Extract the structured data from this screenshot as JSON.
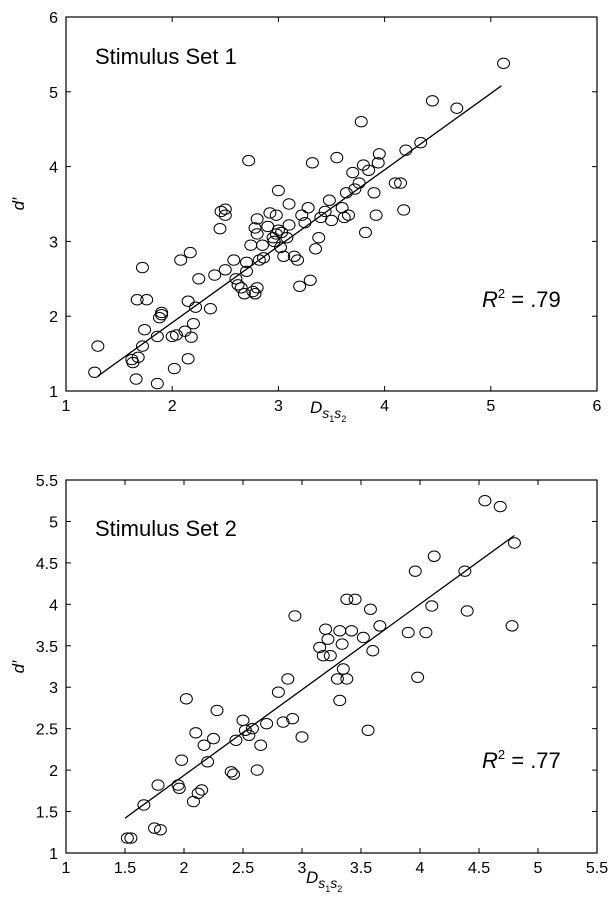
{
  "chart_data": [
    {
      "type": "scatter",
      "annotation": "Stimulus Set 1",
      "ylabel": "d′",
      "xlabel_main": "D",
      "xlabel_sub1": "s",
      "xlabel_sub1_idx": "1",
      "xlabel_sub2": "s",
      "xlabel_sub2_idx": "2",
      "r2_label": "R",
      "r2_sup": "2",
      "r2_value": " = .79",
      "xlim": [
        1,
        6
      ],
      "ylim": [
        1,
        6
      ],
      "xticks": [
        1,
        2,
        3,
        4,
        5,
        6
      ],
      "yticks": [
        1,
        2,
        3,
        4,
        5,
        6
      ],
      "grid": false,
      "fit_line": {
        "x": [
          1.3,
          5.1
        ],
        "y": [
          1.2,
          5.08
        ]
      },
      "points": [
        [
          1.27,
          1.25
        ],
        [
          1.3,
          1.6
        ],
        [
          1.62,
          1.42
        ],
        [
          1.63,
          1.38
        ],
        [
          1.66,
          1.16
        ],
        [
          1.67,
          2.22
        ],
        [
          1.72,
          2.65
        ],
        [
          1.76,
          2.22
        ],
        [
          1.68,
          1.45
        ],
        [
          1.72,
          1.6
        ],
        [
          1.74,
          1.82
        ],
        [
          1.86,
          1.1
        ],
        [
          1.86,
          1.73
        ],
        [
          1.88,
          1.98
        ],
        [
          1.9,
          2.05
        ],
        [
          1.9,
          2.02
        ],
        [
          2.0,
          1.73
        ],
        [
          2.02,
          1.3
        ],
        [
          2.04,
          1.75
        ],
        [
          2.08,
          2.75
        ],
        [
          2.12,
          1.8
        ],
        [
          2.15,
          1.43
        ],
        [
          2.15,
          2.2
        ],
        [
          2.17,
          2.85
        ],
        [
          2.18,
          1.72
        ],
        [
          2.2,
          1.9
        ],
        [
          2.22,
          2.12
        ],
        [
          2.25,
          2.5
        ],
        [
          2.36,
          2.1
        ],
        [
          2.4,
          2.55
        ],
        [
          2.45,
          3.17
        ],
        [
          2.46,
          3.4
        ],
        [
          2.5,
          3.43
        ],
        [
          2.5,
          2.62
        ],
        [
          2.5,
          3.35
        ],
        [
          2.58,
          2.75
        ],
        [
          2.6,
          2.5
        ],
        [
          2.62,
          2.42
        ],
        [
          2.65,
          2.38
        ],
        [
          2.68,
          2.3
        ],
        [
          2.7,
          2.6
        ],
        [
          2.7,
          2.72
        ],
        [
          2.72,
          4.08
        ],
        [
          2.74,
          2.95
        ],
        [
          2.76,
          2.33
        ],
        [
          2.78,
          2.3
        ],
        [
          2.78,
          3.18
        ],
        [
          2.8,
          2.38
        ],
        [
          2.8,
          3.1
        ],
        [
          2.8,
          3.3
        ],
        [
          2.82,
          2.75
        ],
        [
          2.85,
          2.95
        ],
        [
          2.86,
          2.78
        ],
        [
          2.9,
          3.2
        ],
        [
          2.92,
          3.38
        ],
        [
          2.95,
          3.05
        ],
        [
          2.96,
          3.0
        ],
        [
          2.98,
          3.1
        ],
        [
          2.98,
          3.35
        ],
        [
          3.0,
          3.68
        ],
        [
          3.0,
          3.15
        ],
        [
          3.02,
          2.92
        ],
        [
          3.03,
          3.12
        ],
        [
          3.05,
          2.8
        ],
        [
          3.08,
          3.05
        ],
        [
          3.1,
          3.22
        ],
        [
          3.1,
          3.5
        ],
        [
          3.15,
          2.8
        ],
        [
          3.18,
          2.75
        ],
        [
          3.2,
          2.4
        ],
        [
          3.22,
          3.35
        ],
        [
          3.25,
          3.25
        ],
        [
          3.28,
          3.45
        ],
        [
          3.3,
          2.48
        ],
        [
          3.32,
          4.05
        ],
        [
          3.35,
          2.9
        ],
        [
          3.38,
          3.05
        ],
        [
          3.4,
          3.32
        ],
        [
          3.44,
          3.4
        ],
        [
          3.48,
          3.55
        ],
        [
          3.5,
          3.28
        ],
        [
          3.55,
          4.12
        ],
        [
          3.6,
          3.45
        ],
        [
          3.62,
          3.32
        ],
        [
          3.64,
          3.65
        ],
        [
          3.66,
          3.35
        ],
        [
          3.7,
          3.92
        ],
        [
          3.72,
          3.7
        ],
        [
          3.76,
          3.78
        ],
        [
          3.8,
          4.02
        ],
        [
          3.78,
          4.6
        ],
        [
          3.82,
          3.12
        ],
        [
          3.85,
          3.95
        ],
        [
          3.9,
          3.65
        ],
        [
          3.92,
          3.35
        ],
        [
          3.94,
          4.05
        ],
        [
          3.95,
          4.17
        ],
        [
          4.1,
          3.78
        ],
        [
          4.15,
          3.78
        ],
        [
          4.18,
          3.42
        ],
        [
          4.2,
          4.22
        ],
        [
          4.34,
          4.32
        ],
        [
          4.45,
          4.88
        ],
        [
          4.68,
          4.78
        ],
        [
          5.12,
          5.38
        ]
      ]
    },
    {
      "type": "scatter",
      "annotation": "Stimulus Set 2",
      "ylabel": "d′",
      "xlabel_main": "D",
      "xlabel_sub1": "s",
      "xlabel_sub1_idx": "1",
      "xlabel_sub2": "s",
      "xlabel_sub2_idx": "2",
      "r2_label": "R",
      "r2_sup": "2",
      "r2_value": " = .77",
      "xlim": [
        1,
        5.5
      ],
      "ylim": [
        1,
        5.5
      ],
      "xticks": [
        1,
        1.5,
        2,
        2.5,
        3,
        3.5,
        4,
        4.5,
        5,
        5.5
      ],
      "yticks": [
        1,
        1.5,
        2,
        2.5,
        3,
        3.5,
        4,
        4.5,
        5,
        5.5
      ],
      "grid": false,
      "fit_line": {
        "x": [
          1.5,
          4.8
        ],
        "y": [
          1.42,
          4.83
        ]
      },
      "points": [
        [
          1.52,
          1.18
        ],
        [
          1.55,
          1.18
        ],
        [
          1.66,
          1.58
        ],
        [
          1.75,
          1.3
        ],
        [
          1.78,
          1.82
        ],
        [
          1.8,
          1.28
        ],
        [
          1.95,
          1.82
        ],
        [
          1.96,
          1.78
        ],
        [
          1.98,
          2.12
        ],
        [
          2.02,
          2.86
        ],
        [
          2.08,
          1.62
        ],
        [
          2.1,
          2.45
        ],
        [
          2.12,
          1.72
        ],
        [
          2.15,
          1.76
        ],
        [
          2.17,
          2.3
        ],
        [
          2.2,
          2.1
        ],
        [
          2.25,
          2.38
        ],
        [
          2.28,
          2.72
        ],
        [
          2.4,
          1.98
        ],
        [
          2.42,
          1.95
        ],
        [
          2.44,
          2.36
        ],
        [
          2.5,
          2.6
        ],
        [
          2.52,
          2.48
        ],
        [
          2.55,
          2.42
        ],
        [
          2.58,
          2.5
        ],
        [
          2.62,
          2.0
        ],
        [
          2.65,
          2.3
        ],
        [
          2.7,
          2.56
        ],
        [
          2.8,
          2.94
        ],
        [
          2.84,
          2.58
        ],
        [
          2.88,
          3.1
        ],
        [
          2.92,
          2.62
        ],
        [
          2.94,
          3.86
        ],
        [
          3.0,
          2.4
        ],
        [
          3.15,
          3.48
        ],
        [
          3.18,
          3.38
        ],
        [
          3.2,
          3.7
        ],
        [
          3.22,
          3.58
        ],
        [
          3.24,
          3.38
        ],
        [
          3.3,
          3.1
        ],
        [
          3.32,
          2.84
        ],
        [
          3.32,
          3.68
        ],
        [
          3.34,
          3.52
        ],
        [
          3.35,
          3.22
        ],
        [
          3.38,
          4.06
        ],
        [
          3.38,
          3.1
        ],
        [
          3.42,
          3.68
        ],
        [
          3.45,
          4.06
        ],
        [
          3.52,
          3.6
        ],
        [
          3.56,
          2.48
        ],
        [
          3.58,
          3.94
        ],
        [
          3.6,
          3.44
        ],
        [
          3.66,
          3.74
        ],
        [
          3.9,
          3.66
        ],
        [
          3.96,
          4.4
        ],
        [
          3.98,
          3.12
        ],
        [
          4.05,
          3.66
        ],
        [
          4.1,
          3.98
        ],
        [
          4.12,
          4.58
        ],
        [
          4.38,
          4.4
        ],
        [
          4.4,
          3.92
        ],
        [
          4.55,
          5.25
        ],
        [
          4.68,
          5.18
        ],
        [
          4.78,
          3.74
        ],
        [
          4.8,
          4.74
        ]
      ]
    }
  ]
}
